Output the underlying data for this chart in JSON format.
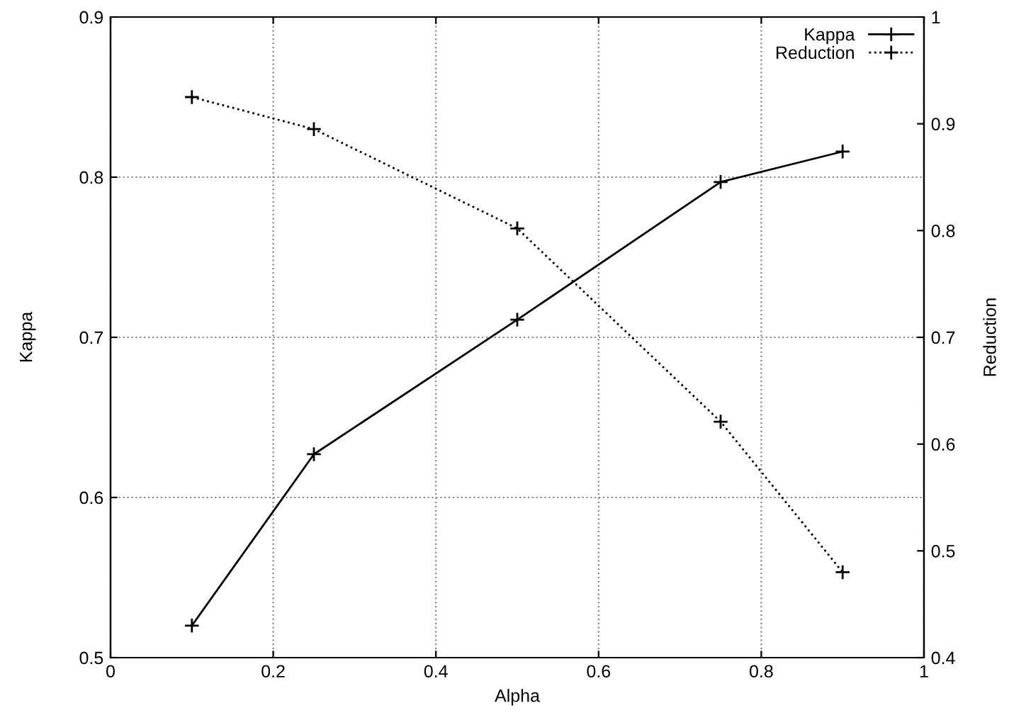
{
  "chart_data": {
    "type": "line",
    "xlabel": "Alpha",
    "ylabel": "Kappa",
    "y2label": "Reduction",
    "x": [
      0.1,
      0.25,
      0.5,
      0.75,
      0.9
    ],
    "series": [
      {
        "name": "Kappa",
        "color": "#000000",
        "values": [
          0.52,
          0.627,
          0.711,
          0.797,
          0.816
        ],
        "line_style": "solid"
      },
      {
        "name": "Reduction",
        "color": "#000000",
        "values": [
          0.925,
          0.895,
          0.802,
          0.621,
          0.48
        ],
        "line_style": "dotted",
        "axis": "y2"
      }
    ],
    "xlim": [
      0,
      1
    ],
    "xticks": [
      0,
      0.2,
      0.4,
      0.6,
      0.8,
      1
    ],
    "ylim": [
      0.5,
      0.9
    ],
    "yticks": [
      0.5,
      0.6,
      0.7,
      0.8,
      0.9
    ],
    "y2lim": [
      0.4,
      1
    ],
    "y2ticks": [
      0.4,
      0.5,
      0.6,
      0.7,
      0.8,
      0.9,
      1
    ],
    "grid": true,
    "legend": "top right",
    "marker": "cross"
  }
}
